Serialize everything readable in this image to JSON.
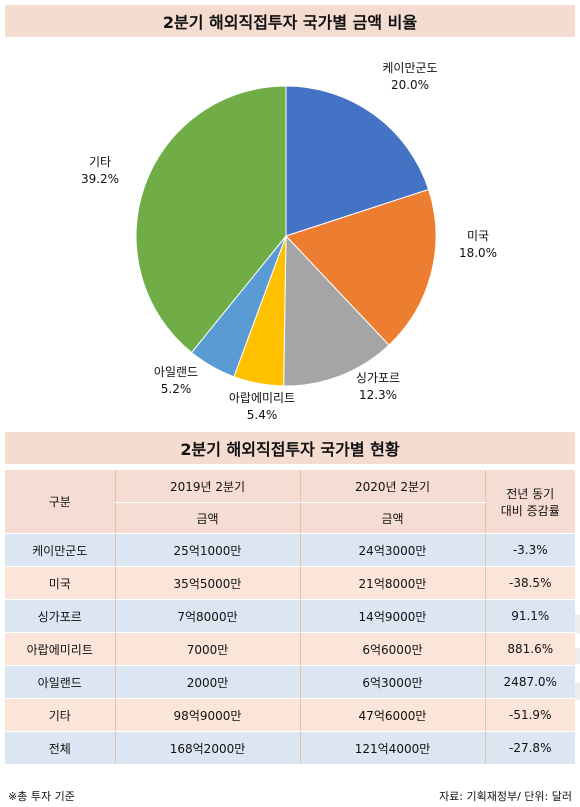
{
  "pie_title": "2분기 해외직접투자 국가별 금액 비율",
  "table_title": "2분기 해외직접투자 국가별 현황",
  "chart_data": {
    "type": "pie",
    "title": "2분기 해외직접투자 국가별 금액 비율",
    "slices": [
      {
        "label": "케이만군도",
        "value": 20.0,
        "pct_label": "20.0%",
        "color": "#4472c4"
      },
      {
        "label": "미국",
        "value": 18.0,
        "pct_label": "18.0%",
        "color": "#ed7d31"
      },
      {
        "label": "싱가포르",
        "value": 12.3,
        "pct_label": "12.3%",
        "color": "#a5a5a5"
      },
      {
        "label": "아랍에미리트",
        "value": 5.4,
        "pct_label": "5.4%",
        "color": "#ffc000"
      },
      {
        "label": "아일랜드",
        "value": 5.2,
        "pct_label": "5.2%",
        "color": "#5b9bd5"
      },
      {
        "label": "기타",
        "value": 39.2,
        "pct_label": "39.2%",
        "color": "#70ad47"
      }
    ]
  },
  "table": {
    "col_category": "구분",
    "col_2019": "2019년 2분기",
    "col_2020": "2020년 2분기",
    "col_change": [
      "전년 동기",
      "대비 증감률"
    ],
    "sub_amount": "금액",
    "rows": [
      {
        "name": "케이만군도",
        "y2019": "25억1000만",
        "y2020": "24억3000만",
        "change": "-3.3%"
      },
      {
        "name": "미국",
        "y2019": "35억5000만",
        "y2020": "21억8000만",
        "change": "-38.5%"
      },
      {
        "name": "싱가포르",
        "y2019": "7억8000만",
        "y2020": "14억9000만",
        "change": "91.1%"
      },
      {
        "name": "아랍에미리트",
        "y2019": "7000만",
        "y2020": "6억6000만",
        "change": "881.6%"
      },
      {
        "name": "아일랜드",
        "y2019": "2000만",
        "y2020": "6억3000만",
        "change": "2487.0%"
      },
      {
        "name": "기타",
        "y2019": "98억9000만",
        "y2020": "47억6000만",
        "change": "-51.9%"
      },
      {
        "name": "전체",
        "y2019": "168억2000만",
        "y2020": "121억4000만",
        "change": "-27.8%"
      }
    ]
  },
  "footnote": "※총 투자 기준",
  "source": "자료: 기획재정부/ 단위: 달러",
  "watermark": "datanews"
}
